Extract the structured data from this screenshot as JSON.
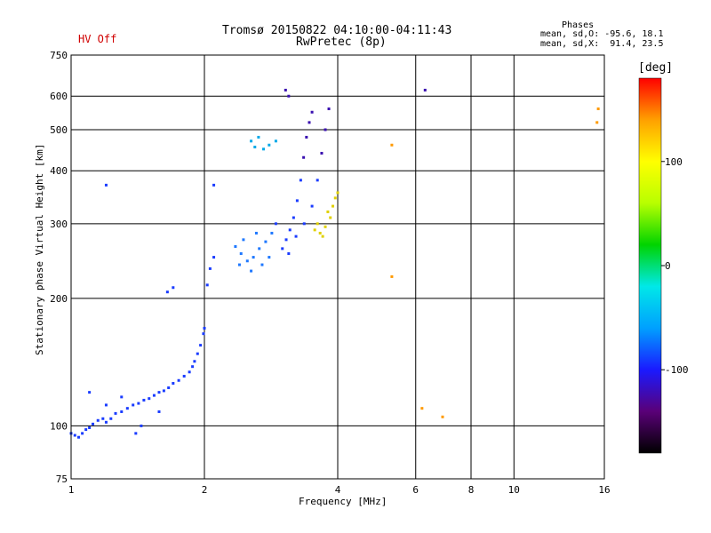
{
  "status": {
    "hv_label": "HV Off",
    "hv_color": "#d00000"
  },
  "header": {
    "title_line1": "Tromsø 20150822 04:10:00-04:11:43",
    "title_line2": "RwPretec (8p)"
  },
  "phases": {
    "title": "Phases",
    "line_o": "mean, sd,O: -95.6, 18.1",
    "line_x": "mean, sd,X:  91.4, 23.5"
  },
  "chart_data": {
    "type": "scatter",
    "xlabel": "Frequency [MHz]",
    "ylabel": "Stationary phase Virtual Height [km]",
    "x_scale": "log",
    "y_scale": "log",
    "xlim": [
      1,
      16
    ],
    "ylim": [
      75,
      750
    ],
    "x_ticks": [
      1,
      2,
      4,
      6,
      8,
      10,
      16
    ],
    "y_ticks": [
      75,
      100,
      200,
      300,
      400,
      500,
      600,
      750
    ],
    "grid": true,
    "colorbar": {
      "unit": "[deg]",
      "range": [
        -180,
        180
      ],
      "ticks": [
        100,
        0,
        -100
      ],
      "colors": [
        "#000000",
        "#5a0078",
        "#1a1aff",
        "#00a0ff",
        "#00e8e8",
        "#00d400",
        "#b8ff00",
        "#ffff00",
        "#ffa000",
        "#ff0000"
      ]
    },
    "series": [
      {
        "points": [
          [
            1.0,
            96
          ],
          [
            1.02,
            95
          ],
          [
            1.04,
            94
          ],
          [
            1.06,
            96
          ],
          [
            1.08,
            98
          ],
          [
            1.1,
            99
          ],
          [
            1.12,
            101
          ],
          [
            1.15,
            103
          ],
          [
            1.18,
            104
          ],
          [
            1.2,
            102
          ],
          [
            1.23,
            104
          ],
          [
            1.26,
            107
          ],
          [
            1.3,
            108
          ],
          [
            1.34,
            110
          ],
          [
            1.38,
            112
          ],
          [
            1.42,
            113
          ],
          [
            1.46,
            115
          ],
          [
            1.5,
            116
          ],
          [
            1.54,
            118
          ],
          [
            1.58,
            120
          ],
          [
            1.62,
            121
          ],
          [
            1.66,
            123
          ],
          [
            1.7,
            126
          ],
          [
            1.75,
            128
          ],
          [
            1.8,
            131
          ],
          [
            1.85,
            134
          ],
          [
            1.88,
            138
          ],
          [
            1.9,
            142
          ],
          [
            1.93,
            148
          ],
          [
            1.96,
            155
          ],
          [
            1.99,
            165
          ],
          [
            2.0,
            170
          ],
          [
            1.1,
            120
          ],
          [
            1.2,
            112
          ],
          [
            1.3,
            117
          ],
          [
            1.4,
            96
          ],
          [
            1.44,
            100
          ],
          [
            1.58,
            108
          ],
          [
            2.03,
            215
          ],
          [
            2.06,
            235
          ],
          [
            2.1,
            250
          ],
          [
            2.35,
            265
          ],
          [
            2.42,
            255
          ],
          [
            2.5,
            245
          ],
          [
            2.58,
            250
          ],
          [
            2.66,
            262
          ],
          [
            2.75,
            272
          ],
          [
            2.84,
            285
          ],
          [
            2.9,
            300
          ],
          [
            2.4,
            240
          ],
          [
            2.55,
            232
          ],
          [
            2.7,
            240
          ],
          [
            2.8,
            250
          ],
          [
            2.45,
            275
          ],
          [
            2.62,
            285
          ],
          [
            3.0,
            262
          ],
          [
            3.06,
            275
          ],
          [
            3.12,
            290
          ],
          [
            3.18,
            310
          ],
          [
            3.24,
            340
          ],
          [
            3.3,
            380
          ],
          [
            3.35,
            430
          ],
          [
            3.4,
            480
          ],
          [
            3.45,
            520
          ],
          [
            3.5,
            550
          ],
          [
            3.1,
            255
          ],
          [
            3.22,
            280
          ],
          [
            3.36,
            300
          ],
          [
            3.5,
            330
          ],
          [
            3.6,
            380
          ],
          [
            3.68,
            440
          ],
          [
            3.75,
            500
          ],
          [
            3.82,
            560
          ],
          [
            1.65,
            207
          ],
          [
            1.7,
            212
          ],
          [
            3.05,
            620
          ],
          [
            3.1,
            600
          ],
          [
            6.3,
            620
          ],
          [
            1.2,
            370
          ],
          [
            2.1,
            370
          ]
        ]
      },
      {
        "points": [
          [
            2.6,
            455
          ],
          [
            2.72,
            450
          ],
          [
            2.8,
            460
          ],
          [
            2.9,
            470
          ],
          [
            2.55,
            470
          ],
          [
            2.65,
            480
          ],
          [
            3.55,
            290
          ],
          [
            3.65,
            285
          ],
          [
            3.75,
            295
          ],
          [
            3.85,
            310
          ],
          [
            3.9,
            330
          ],
          [
            3.95,
            345
          ],
          [
            3.7,
            280
          ],
          [
            3.6,
            300
          ],
          [
            4.0,
            355
          ],
          [
            3.8,
            320
          ],
          [
            5.3,
            460
          ],
          [
            5.3,
            225
          ],
          [
            6.2,
            110
          ],
          [
            6.9,
            105
          ],
          [
            15.5,
            560
          ],
          [
            15.4,
            520
          ]
        ]
      }
    ]
  }
}
